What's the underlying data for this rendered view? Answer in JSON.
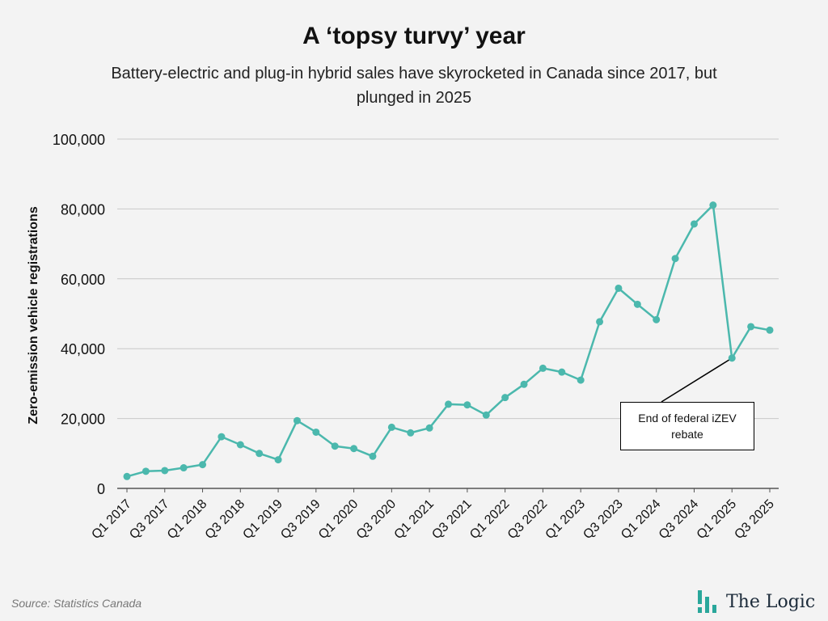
{
  "header": {
    "title": "A ‘topsy turvy’ year",
    "subtitle": "Battery-electric and plug-in hybrid sales have skyrocketed in Canada since 2017, but plunged in 2025"
  },
  "footer": {
    "source": "Source: Statistics Canada",
    "brand": "The Logic"
  },
  "colors": {
    "line": "#4bb8ad",
    "grid": "#c8c8c8",
    "axis": "#555555",
    "logo_mark": "#2aa79b"
  },
  "chart_data": {
    "type": "line",
    "title": "A ‘topsy turvy’ year",
    "ylabel": "Zero-emission vehicle registrations",
    "xlabel": "",
    "ylim": [
      0,
      100000
    ],
    "y_ticks": [
      0,
      20000,
      40000,
      60000,
      80000,
      100000
    ],
    "y_tick_labels": [
      "0",
      "20,000",
      "40,000",
      "60,000",
      "80,000",
      "100,000"
    ],
    "grid": true,
    "categories": [
      "Q1 2017",
      "Q2 2017",
      "Q3 2017",
      "Q4 2017",
      "Q1 2018",
      "Q2 2018",
      "Q3 2018",
      "Q4 2018",
      "Q1 2019",
      "Q2 2019",
      "Q3 2019",
      "Q4 2019",
      "Q1 2020",
      "Q2 2020",
      "Q3 2020",
      "Q4 2020",
      "Q1 2021",
      "Q2 2021",
      "Q3 2021",
      "Q4 2021",
      "Q1 2022",
      "Q2 2022",
      "Q3 2022",
      "Q4 2022",
      "Q1 2023",
      "Q2 2023",
      "Q3 2023",
      "Q4 2023",
      "Q1 2024",
      "Q2 2024",
      "Q3 2024",
      "Q4 2024",
      "Q1 2025",
      "Q2 2025",
      "Q3 2025"
    ],
    "x_tick_labels": [
      "Q1 2017",
      "Q3 2017",
      "Q1 2018",
      "Q3 2018",
      "Q1 2019",
      "Q3 2019",
      "Q1 2020",
      "Q3 2020",
      "Q1 2021",
      "Q3 2021",
      "Q1 2022",
      "Q3 2022",
      "Q1 2023",
      "Q3 2023",
      "Q1 2024",
      "Q3 2024",
      "Q1 2025",
      "Q3 2025"
    ],
    "series": [
      {
        "values": [
          3400,
          4900,
          5100,
          5900,
          6800,
          14800,
          12500,
          10000,
          8200,
          19400,
          16100,
          12100,
          11400,
          9200,
          17500,
          15900,
          17300,
          24100,
          23900,
          21000,
          26000,
          29800,
          34400,
          33300,
          31000,
          47700,
          57300,
          52700,
          48300,
          65800,
          75700,
          81100,
          37300,
          46300,
          45300
        ]
      }
    ],
    "annotations": [
      {
        "text": "End of federal iZEV rebate",
        "category": "Q1 2025"
      }
    ]
  }
}
